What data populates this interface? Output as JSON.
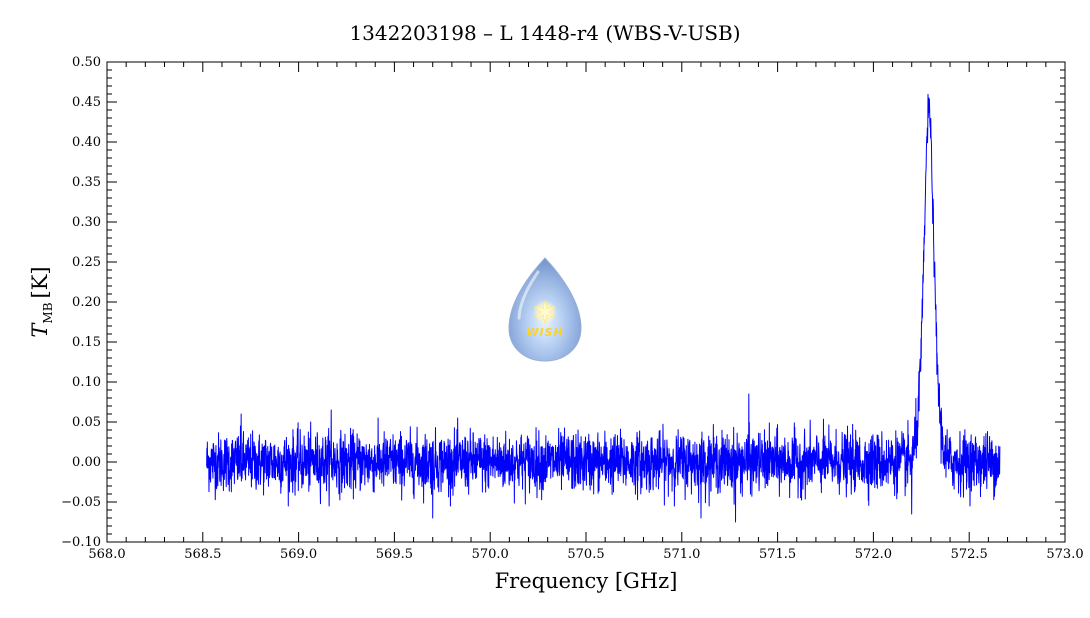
{
  "chart_data": {
    "type": "line",
    "title": "1342203198 – L 1448-r4 (WBS-V-USB)",
    "xlabel": "Frequency [GHz]",
    "ylabel_main": "T",
    "ylabel_sub": "MB",
    "ylabel_unit": "[K]",
    "xlim": [
      568.0,
      573.0
    ],
    "ylim": [
      -0.1,
      0.5
    ],
    "x_ticks": [
      "568.0",
      "568.5",
      "569.0",
      "569.5",
      "570.0",
      "570.5",
      "571.0",
      "571.5",
      "572.0",
      "572.5",
      "573.0"
    ],
    "y_ticks": [
      "−0.10",
      "−0.05",
      "0.00",
      "0.05",
      "0.10",
      "0.15",
      "0.20",
      "0.25",
      "0.30",
      "0.35",
      "0.40",
      "0.45",
      "0.50"
    ],
    "series": [
      {
        "color": "#0000ff",
        "x_range": [
          568.52,
          572.66
        ],
        "baseline_noise_sigma": 0.018,
        "features": [
          {
            "type": "emission",
            "center": 572.29,
            "peak": 0.44,
            "width": 0.03
          }
        ],
        "notable_points": [
          {
            "x": 568.7,
            "y": 0.06
          },
          {
            "x": 569.17,
            "y": 0.065
          },
          {
            "x": 569.7,
            "y": -0.07
          },
          {
            "x": 571.1,
            "y": -0.07
          },
          {
            "x": 571.28,
            "y": -0.075
          },
          {
            "x": 571.35,
            "y": 0.085
          },
          {
            "x": 572.2,
            "y": -0.065
          }
        ]
      }
    ],
    "grid": false,
    "legend": "none"
  },
  "logo": {
    "text": "WISH",
    "icon": "water-drop-star-icon"
  }
}
